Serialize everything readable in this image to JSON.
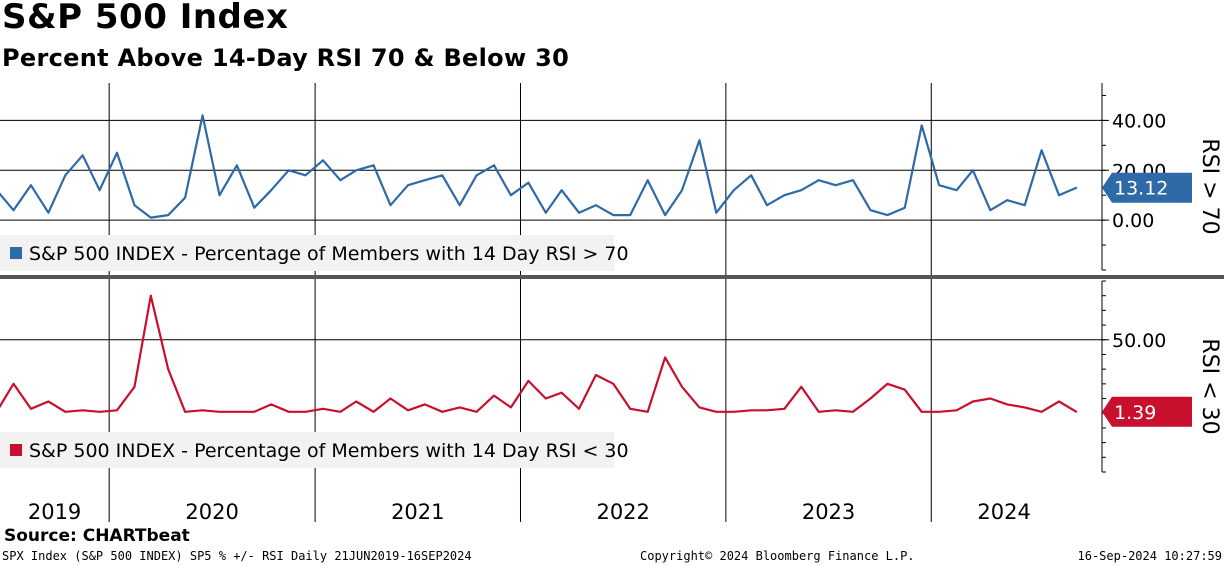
{
  "title": "S&P 500 Index",
  "subtitle": "Percent Above 14-Day RSI 70 & Below 30",
  "source": "Source: CHARTbeat",
  "footer": {
    "left": "SPX Index (S&P 500 INDEX) SP5 % +/- RSI  Daily 21JUN2019-16SEP2024",
    "center": "Copyright© 2024 Bloomberg Finance L.P.",
    "right": "16-Sep-2024 10:27:59"
  },
  "colors": {
    "upper": "#2e6aa8",
    "lower": "#c8102e",
    "grid": "#000000",
    "legend_bg": "#f2f2f2"
  },
  "chart_data": [
    {
      "type": "line",
      "axis_label": "RSI > 70",
      "legend": "S&P 500 INDEX - Percentage of Members with 14 Day RSI > 70",
      "last_value_label": "13.12",
      "y_ticks": [
        "40.00",
        "20.00",
        "0.00"
      ],
      "ylim": [
        -20,
        55
      ],
      "x_ticks": [
        "2019",
        "2020",
        "2021",
        "2022",
        "2023",
        "2024"
      ],
      "x": [
        "2019-06",
        "2019-07",
        "2019-08",
        "2019-09",
        "2019-10",
        "2019-11",
        "2019-12",
        "2020-01",
        "2020-02",
        "2020-03",
        "2020-04",
        "2020-05",
        "2020-06",
        "2020-07",
        "2020-08",
        "2020-09",
        "2020-10",
        "2020-11",
        "2020-12",
        "2021-01",
        "2021-02",
        "2021-03",
        "2021-04",
        "2021-05",
        "2021-06",
        "2021-07",
        "2021-08",
        "2021-09",
        "2021-10",
        "2021-11",
        "2021-12",
        "2022-01",
        "2022-02",
        "2022-03",
        "2022-04",
        "2022-05",
        "2022-06",
        "2022-07",
        "2022-08",
        "2022-09",
        "2022-10",
        "2022-11",
        "2022-12",
        "2023-01",
        "2023-02",
        "2023-03",
        "2023-04",
        "2023-05",
        "2023-06",
        "2023-07",
        "2023-08",
        "2023-09",
        "2023-10",
        "2023-11",
        "2023-12",
        "2024-01",
        "2024-02",
        "2024-03",
        "2024-04",
        "2024-05",
        "2024-06",
        "2024-07",
        "2024-08",
        "2024-09"
      ],
      "values": [
        12,
        4,
        14,
        3,
        18,
        26,
        12,
        27,
        6,
        1,
        2,
        9,
        42,
        10,
        22,
        5,
        12,
        20,
        18,
        24,
        16,
        20,
        22,
        6,
        14,
        16,
        18,
        6,
        18,
        22,
        10,
        15,
        3,
        12,
        3,
        6,
        2,
        2,
        16,
        2,
        12,
        32,
        3,
        12,
        18,
        6,
        10,
        12,
        16,
        14,
        16,
        4,
        2,
        5,
        38,
        14,
        12,
        20,
        4,
        8,
        6,
        28,
        10,
        13
      ]
    },
    {
      "type": "line",
      "axis_label": "RSI < 30",
      "legend": "S&P 500 INDEX - Percentage of Members with 14 Day RSI < 30",
      "last_value_label": "1.39",
      "y_ticks": [
        "50.00"
      ],
      "ylim": [
        -40,
        90
      ],
      "x_ticks": [
        "2019",
        "2020",
        "2021",
        "2022",
        "2023",
        "2024"
      ],
      "x": [
        "2019-06",
        "2019-07",
        "2019-08",
        "2019-09",
        "2019-10",
        "2019-11",
        "2019-12",
        "2020-01",
        "2020-02",
        "2020-03",
        "2020-04",
        "2020-05",
        "2020-06",
        "2020-07",
        "2020-08",
        "2020-09",
        "2020-10",
        "2020-11",
        "2020-12",
        "2021-01",
        "2021-02",
        "2021-03",
        "2021-04",
        "2021-05",
        "2021-06",
        "2021-07",
        "2021-08",
        "2021-09",
        "2021-10",
        "2021-11",
        "2021-12",
        "2022-01",
        "2022-02",
        "2022-03",
        "2022-04",
        "2022-05",
        "2022-06",
        "2022-07",
        "2022-08",
        "2022-09",
        "2022-10",
        "2022-11",
        "2022-12",
        "2023-01",
        "2023-02",
        "2023-03",
        "2023-04",
        "2023-05",
        "2023-06",
        "2023-07",
        "2023-08",
        "2023-09",
        "2023-10",
        "2023-11",
        "2023-12",
        "2024-01",
        "2024-02",
        "2024-03",
        "2024-04",
        "2024-05",
        "2024-06",
        "2024-07",
        "2024-08",
        "2024-09"
      ],
      "values": [
        1,
        20,
        3,
        8,
        1,
        2,
        1,
        2,
        18,
        80,
        30,
        1,
        2,
        1,
        1,
        1,
        6,
        1,
        1,
        3,
        1,
        8,
        1,
        10,
        2,
        6,
        1,
        4,
        1,
        12,
        4,
        22,
        10,
        14,
        3,
        26,
        20,
        3,
        1,
        38,
        18,
        4,
        1,
        1,
        2,
        2,
        3,
        18,
        1,
        2,
        1,
        10,
        20,
        16,
        1,
        1,
        2,
        8,
        10,
        6,
        4,
        1,
        8,
        1
      ]
    }
  ]
}
